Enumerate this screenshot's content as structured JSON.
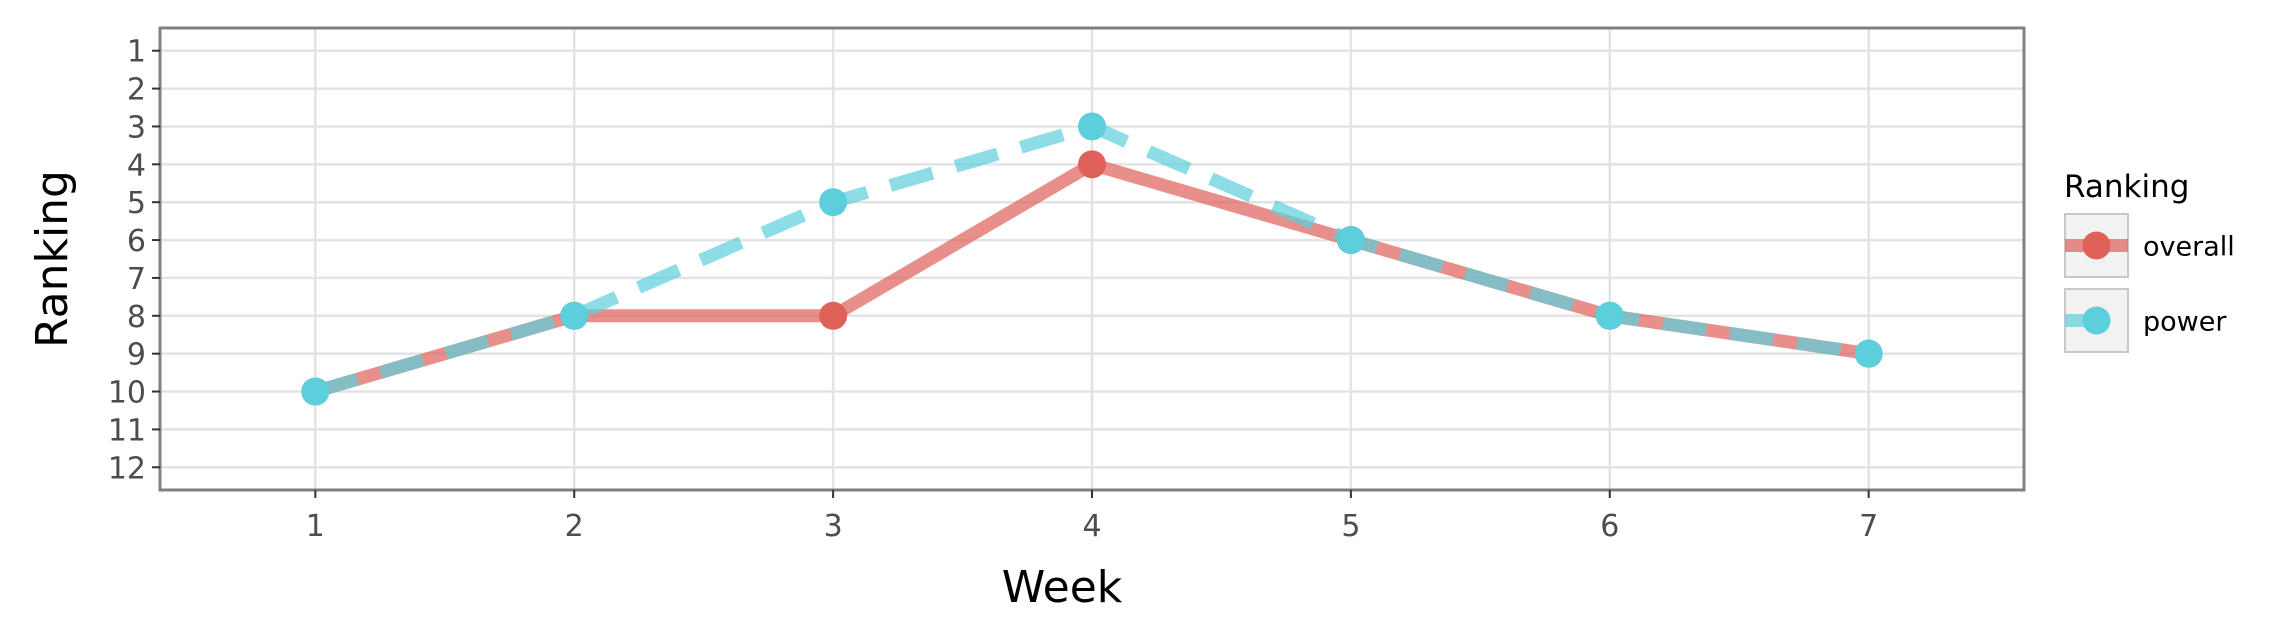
{
  "chart_data": {
    "type": "line",
    "xlabel": "Week",
    "ylabel": "Ranking",
    "x": [
      1,
      2,
      3,
      4,
      5,
      6,
      7
    ],
    "xlim": [
      0.4,
      7.6
    ],
    "ylim": [
      12.6,
      0.4
    ],
    "y_reversed": true,
    "x_ticks": [
      "1",
      "2",
      "3",
      "4",
      "5",
      "6",
      "7"
    ],
    "y_ticks": [
      "1",
      "2",
      "3",
      "4",
      "5",
      "6",
      "7",
      "8",
      "9",
      "10",
      "11",
      "12"
    ],
    "grid": true,
    "legend": {
      "title": "Ranking",
      "position": "right"
    },
    "series": [
      {
        "name": "overall",
        "color": "#E0605A",
        "line_style": "solid",
        "values": [
          10,
          8,
          8,
          4,
          6,
          8,
          9
        ]
      },
      {
        "name": "power",
        "color": "#5BCFDB",
        "line_style": "dashed",
        "values": [
          10,
          8,
          5,
          3,
          6,
          8,
          9
        ]
      }
    ]
  }
}
